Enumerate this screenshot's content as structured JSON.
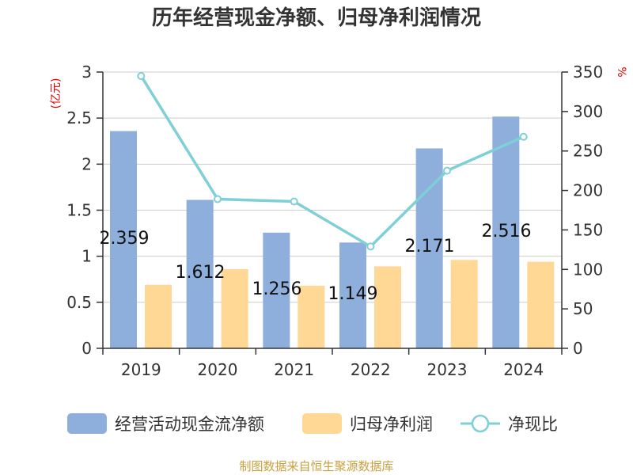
{
  "chart_data": {
    "type": "bar",
    "title": "历年经营现金净额、归母净利润情况",
    "categories": [
      "2019",
      "2020",
      "2021",
      "2022",
      "2023",
      "2024"
    ],
    "left_axis": {
      "unit": "(亿元)",
      "ylim": [
        0,
        3
      ],
      "ticks": [
        "0",
        "0.5",
        "1",
        "1.5",
        "2",
        "2.5",
        "3"
      ]
    },
    "right_axis": {
      "unit": "%",
      "ylim": [
        0,
        350
      ],
      "ticks": [
        "0",
        "50",
        "100",
        "150",
        "200",
        "250",
        "300",
        "350"
      ]
    },
    "series": [
      {
        "name": "经营活动现金流净额",
        "type": "bar",
        "axis": "left",
        "color": "#8eaedc",
        "values": [
          2.359,
          1.612,
          1.256,
          1.149,
          2.171,
          2.516
        ],
        "labels": [
          "2.359",
          "1.612",
          "1.256",
          "1.149",
          "2.171",
          "2.516"
        ]
      },
      {
        "name": "归母净利润",
        "type": "bar",
        "axis": "left",
        "color": "#ffd896",
        "values": [
          0.69,
          0.86,
          0.68,
          0.89,
          0.96,
          0.94
        ]
      },
      {
        "name": "净现比",
        "type": "line",
        "axis": "right",
        "color": "#7fd0d6",
        "values": [
          345,
          189,
          186,
          129,
          225,
          268
        ]
      }
    ],
    "grid": true,
    "legend": "bottom"
  },
  "footer": {
    "source": "制图数据来自恒生聚源数据库"
  }
}
